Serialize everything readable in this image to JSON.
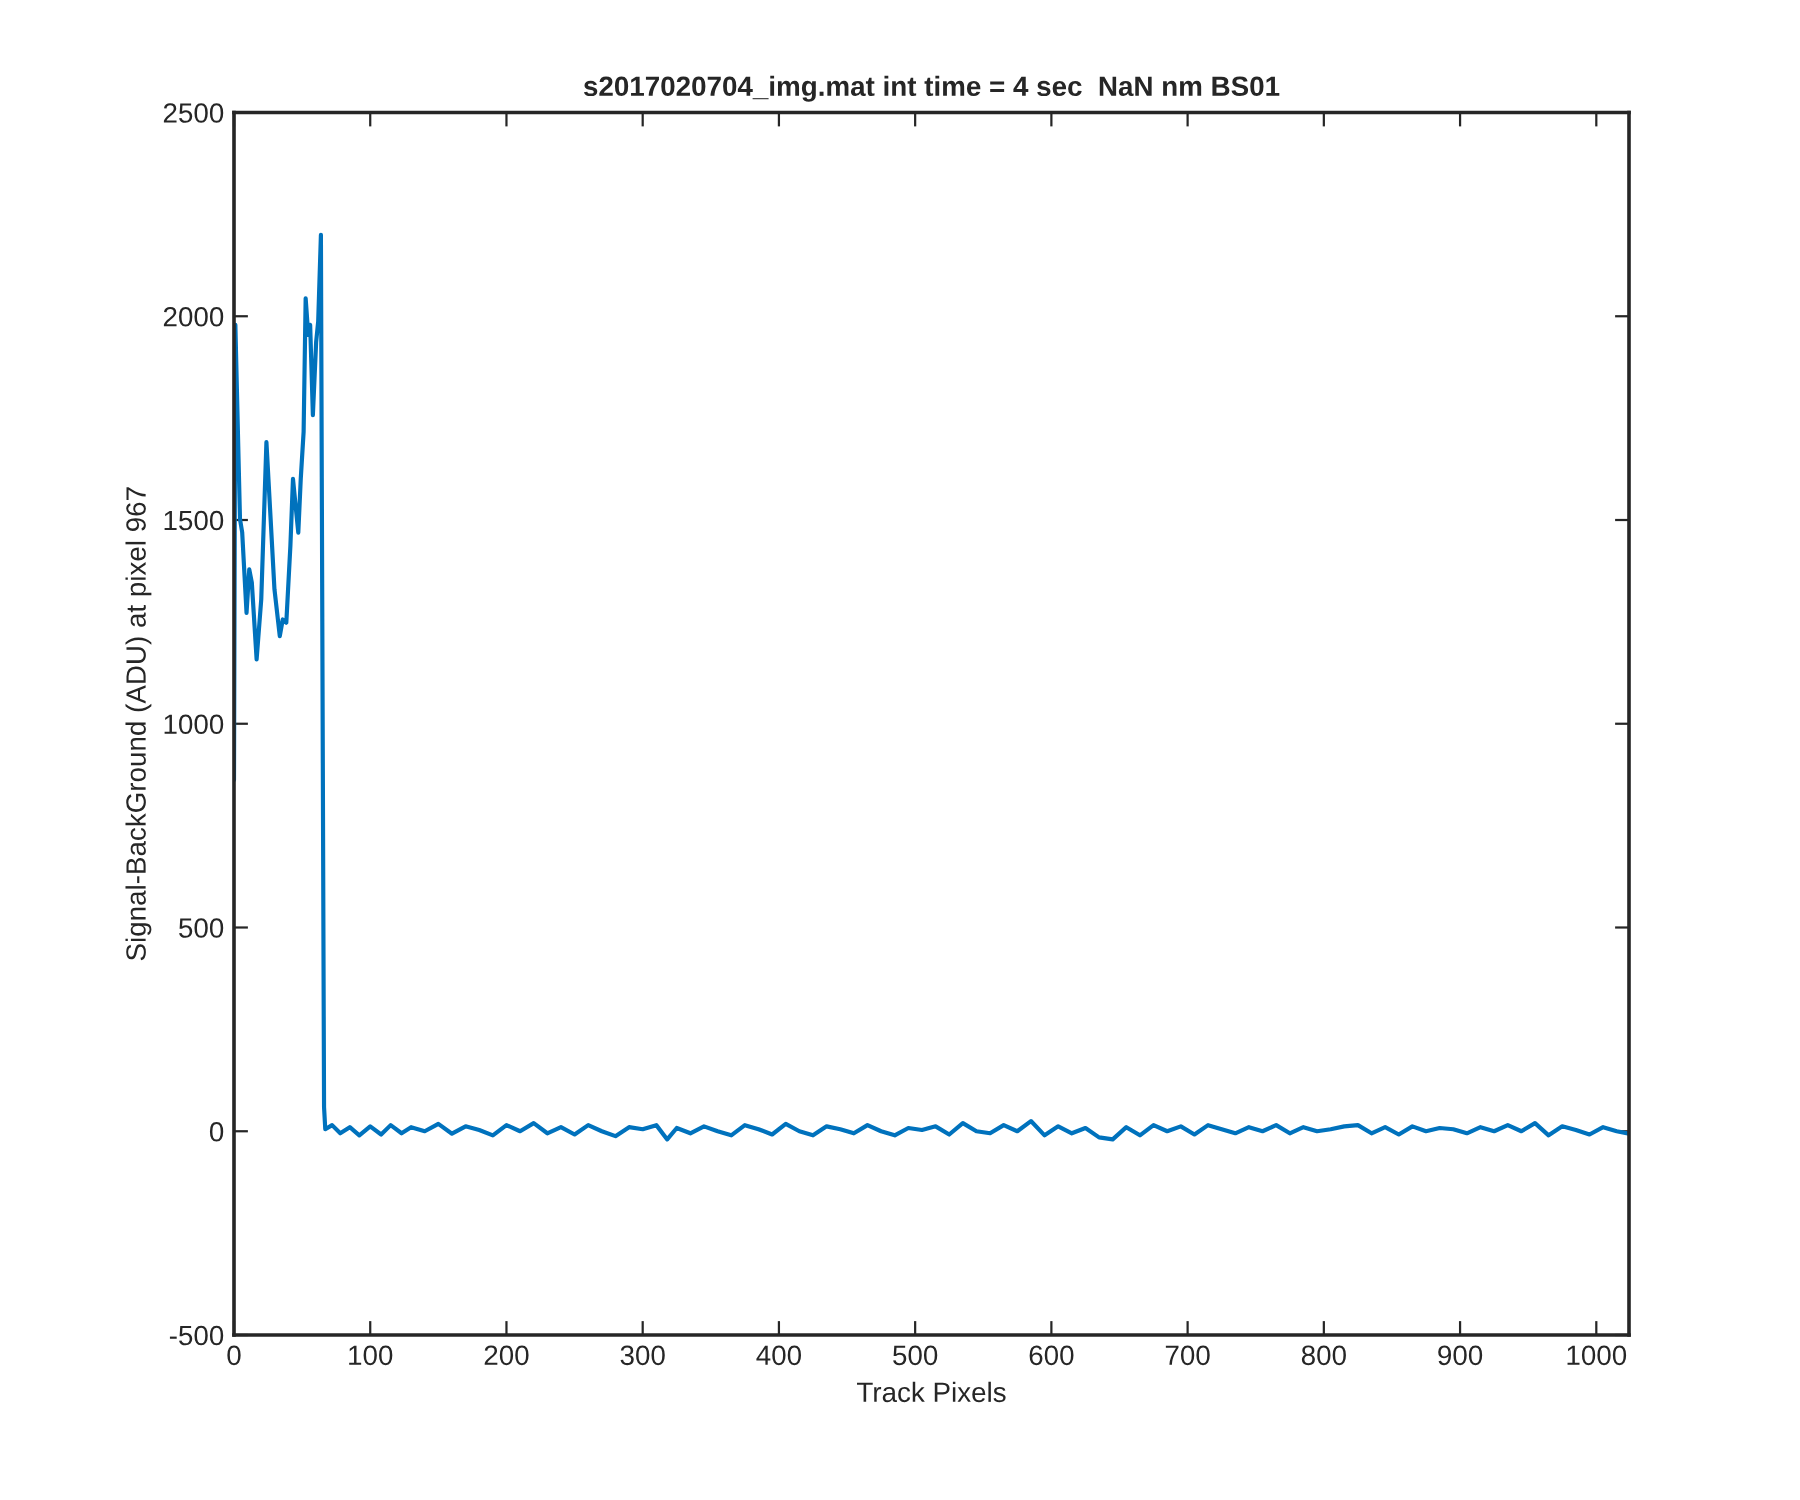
{
  "chart_data": {
    "type": "line",
    "title": "s2017020704_img.mat int time = 4 sec  NaN nm BS01",
    "xlabel": "Track Pixels",
    "ylabel": "Signal-BackGround (ADU) at pixel 967",
    "x": [
      0,
      1,
      4.4,
      6,
      9.2,
      11.2,
      13.1,
      16.6,
      20,
      23.8,
      29.7,
      33.6,
      35.8,
      38.4,
      41.4,
      43.3,
      45.7,
      47.2,
      49,
      51.1,
      52.6,
      54.5,
      55.9,
      57.9,
      60.3,
      61.8,
      63.8,
      66.1,
      67,
      72,
      78,
      85,
      92,
      100,
      108,
      115,
      123,
      130,
      140,
      150,
      160,
      170,
      180,
      190,
      200,
      210,
      220,
      230,
      240,
      250,
      260,
      270,
      280,
      290,
      300,
      310,
      318,
      325,
      335,
      345,
      355,
      365,
      375,
      385,
      395,
      405,
      415,
      425,
      435,
      445,
      455,
      465,
      475,
      485,
      495,
      505,
      515,
      525,
      535,
      545,
      555,
      565,
      575,
      585,
      595,
      605,
      615,
      625,
      635,
      645,
      655,
      665,
      675,
      685,
      695,
      705,
      715,
      725,
      735,
      745,
      755,
      765,
      775,
      785,
      795,
      805,
      815,
      825,
      835,
      845,
      855,
      865,
      875,
      885,
      895,
      905,
      915,
      925,
      935,
      945,
      955,
      965,
      975,
      985,
      995,
      1005,
      1015,
      1024
    ],
    "series": [
      {
        "color": "#0072bd",
        "values": [
          862,
          1979,
          1502,
          1470,
          1272,
          1379,
          1346,
          1158,
          1305,
          1691,
          1330,
          1215,
          1256,
          1248,
          1437,
          1601,
          1519,
          1469,
          1601,
          1716,
          2044,
          1954,
          1979,
          1757,
          1937,
          1987,
          2200,
          59,
          5,
          15,
          -5,
          10,
          -10,
          12,
          -8,
          15,
          -5,
          10,
          0,
          18,
          -6,
          12,
          3,
          -10,
          15,
          0,
          20,
          -5,
          10,
          -8,
          15,
          0,
          -12,
          10,
          5,
          15,
          -20,
          8,
          -5,
          12,
          0,
          -10,
          15,
          5,
          -8,
          18,
          0,
          -10,
          12,
          5,
          -5,
          15,
          0,
          -10,
          8,
          3,
          12,
          -8,
          20,
          0,
          -5,
          15,
          0,
          25,
          -10,
          12,
          -5,
          8,
          -15,
          -20,
          10,
          -10,
          15,
          0,
          12,
          -8,
          15,
          5,
          -5,
          10,
          0,
          15,
          -5,
          10,
          0,
          5,
          12,
          15,
          -5,
          10,
          -8,
          12,
          0,
          8,
          5,
          -5,
          10,
          0,
          15,
          0,
          20,
          -10,
          12,
          3,
          -8,
          10,
          0,
          -6
        ]
      }
    ],
    "xlim": [
      0,
      1024
    ],
    "xticks": [
      0,
      100,
      200,
      300,
      400,
      500,
      600,
      700,
      800,
      900,
      1000
    ],
    "ylim": [
      -500,
      2500
    ],
    "yticks": [
      -500,
      0,
      500,
      1000,
      1500,
      2000,
      2500
    ],
    "grid": false,
    "legend": false
  }
}
